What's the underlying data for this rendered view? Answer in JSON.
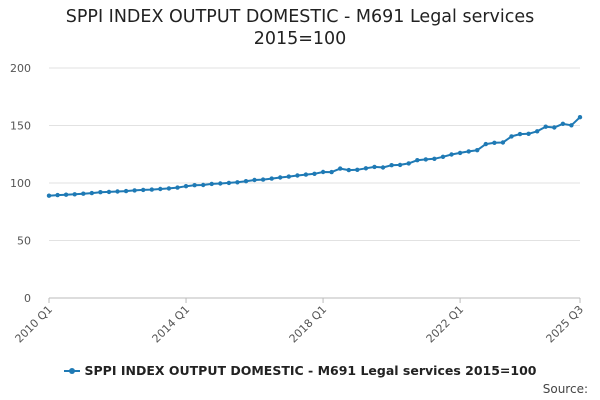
{
  "chart_data": {
    "type": "line",
    "title_lines": [
      "SPPI INDEX OUTPUT DOMESTIC - M691 Legal services",
      "2015=100"
    ],
    "xlabel": "",
    "ylabel": "",
    "ylim": [
      0,
      200
    ],
    "y_ticks": [
      "0",
      "50",
      "100",
      "150",
      "200"
    ],
    "x_tick_labels": [
      "2010 Q1",
      "2014 Q1",
      "2018 Q1",
      "2022 Q1",
      "2025 Q3"
    ],
    "x_tick_indices": [
      0,
      16,
      32,
      48,
      62
    ],
    "grid": "horizontal",
    "legend_position": "bottom",
    "series": [
      {
        "name": "SPPI INDEX OUTPUT DOMESTIC - M691 Legal services 2015=100",
        "color": "#1f7ab5",
        "x": [
          "2010 Q1",
          "2010 Q2",
          "2010 Q3",
          "2010 Q4",
          "2011 Q1",
          "2011 Q2",
          "2011 Q3",
          "2011 Q4",
          "2012 Q1",
          "2012 Q2",
          "2012 Q3",
          "2012 Q4",
          "2013 Q1",
          "2013 Q2",
          "2013 Q3",
          "2013 Q4",
          "2014 Q1",
          "2014 Q2",
          "2014 Q3",
          "2014 Q4",
          "2015 Q1",
          "2015 Q2",
          "2015 Q3",
          "2015 Q4",
          "2016 Q1",
          "2016 Q2",
          "2016 Q3",
          "2016 Q4",
          "2017 Q1",
          "2017 Q2",
          "2017 Q3",
          "2017 Q4",
          "2018 Q1",
          "2018 Q2",
          "2018 Q3",
          "2018 Q4",
          "2019 Q1",
          "2019 Q2",
          "2019 Q3",
          "2019 Q4",
          "2020 Q1",
          "2020 Q2",
          "2020 Q3",
          "2020 Q4",
          "2021 Q1",
          "2021 Q2",
          "2021 Q3",
          "2021 Q4",
          "2022 Q1",
          "2022 Q2",
          "2022 Q3",
          "2022 Q4",
          "2023 Q1",
          "2023 Q2",
          "2023 Q3",
          "2023 Q4",
          "2024 Q1",
          "2024 Q2",
          "2024 Q3",
          "2024 Q4",
          "2025 Q1",
          "2025 Q2",
          "2025 Q3"
        ],
        "values": [
          89,
          89.5,
          89.8,
          90.2,
          90.7,
          91.2,
          92,
          92.3,
          92.6,
          93,
          93.6,
          94,
          94.3,
          94.8,
          95.3,
          96,
          97.2,
          98.1,
          98.3,
          99.2,
          99.6,
          100.1,
          100.6,
          101.6,
          102.6,
          103,
          103.8,
          104.8,
          105.6,
          106.5,
          107.3,
          108,
          109.6,
          109.5,
          112.5,
          111.2,
          111.5,
          112.8,
          114,
          113.5,
          115.5,
          115.7,
          117,
          119.8,
          120.5,
          121,
          122.8,
          124.8,
          126.2,
          127.5,
          128.5,
          133.8,
          135,
          135.2,
          140.5,
          142.5,
          142.8,
          145,
          149,
          148.3,
          151.5,
          150.2,
          157.2
        ]
      }
    ]
  },
  "source_label": "Source:"
}
